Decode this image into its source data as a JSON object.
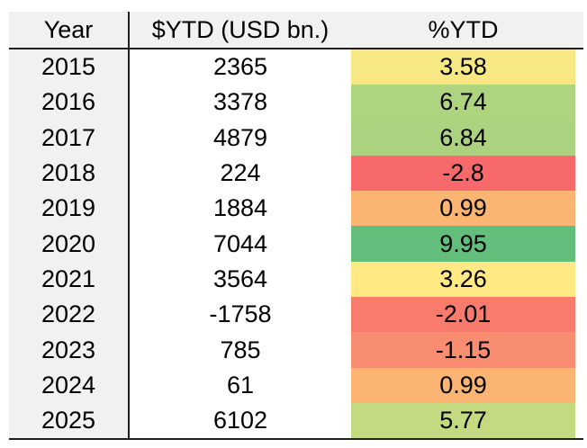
{
  "page": {
    "background": "#ffffff"
  },
  "table": {
    "header": {
      "year": "Year",
      "usd": "$YTD (USD bn.)",
      "pct": "%YTD"
    },
    "rows": [
      {
        "year": "2015",
        "usd": "2365",
        "pct": "3.58",
        "pct_bg": "#F7E883"
      },
      {
        "year": "2016",
        "usd": "3378",
        "pct": "6.74",
        "pct_bg": "#AED47F"
      },
      {
        "year": "2017",
        "usd": "4879",
        "pct": "6.84",
        "pct_bg": "#ABD37F"
      },
      {
        "year": "2018",
        "usd": "224",
        "pct": "-2.8",
        "pct_bg": "#F8696B"
      },
      {
        "year": "2019",
        "usd": "1884",
        "pct": "0.99",
        "pct_bg": "#FBB472"
      },
      {
        "year": "2020",
        "usd": "7044",
        "pct": "9.95",
        "pct_bg": "#63BE7B"
      },
      {
        "year": "2021",
        "usd": "3564",
        "pct": "3.26",
        "pct_bg": "#FEE982"
      },
      {
        "year": "2022",
        "usd": "-1758",
        "pct": "-2.01",
        "pct_bg": "#F87B6E"
      },
      {
        "year": "2023",
        "usd": "785",
        "pct": "-1.15",
        "pct_bg": "#F98D71"
      },
      {
        "year": "2024",
        "usd": "61",
        "pct": "0.99",
        "pct_bg": "#FBB472"
      },
      {
        "year": "2025",
        "usd": "6102",
        "pct": "5.77",
        "pct_bg": "#C3DA80"
      }
    ],
    "colors": {
      "header_bg": "#F1F1F1",
      "year_col_bg": "#F1F1F1",
      "rule": "#1F1F1F",
      "scale_min": "#F8696B",
      "scale_mid": "#FFEB84",
      "scale_max": "#63BE7B"
    }
  },
  "chart_data": {
    "type": "table",
    "title": "",
    "columns": [
      "Year",
      "$YTD (USD bn.)",
      "%YTD"
    ],
    "rows": [
      [
        2015,
        2365,
        3.58
      ],
      [
        2016,
        3378,
        6.74
      ],
      [
        2017,
        4879,
        6.84
      ],
      [
        2018,
        224,
        -2.8
      ],
      [
        2019,
        1884,
        0.99
      ],
      [
        2020,
        7044,
        9.95
      ],
      [
        2021,
        3564,
        3.26
      ],
      [
        2022,
        -1758,
        -2.01
      ],
      [
        2023,
        785,
        -1.15
      ],
      [
        2024,
        61,
        0.99
      ],
      [
        2025,
        6102,
        5.77
      ],
      "note-structure: color scale applies to %YTD column only"
    ],
    "color_scale": {
      "applies_to": "%YTD",
      "type": "3-color red-yellow-green",
      "min": {
        "value": -2.8,
        "color": "#F8696B"
      },
      "mid": {
        "value": 3.26,
        "color": "#FFEB84"
      },
      "max": {
        "value": 9.95,
        "color": "#63BE7B"
      }
    },
    "legend_position": "none",
    "grid": false
  }
}
